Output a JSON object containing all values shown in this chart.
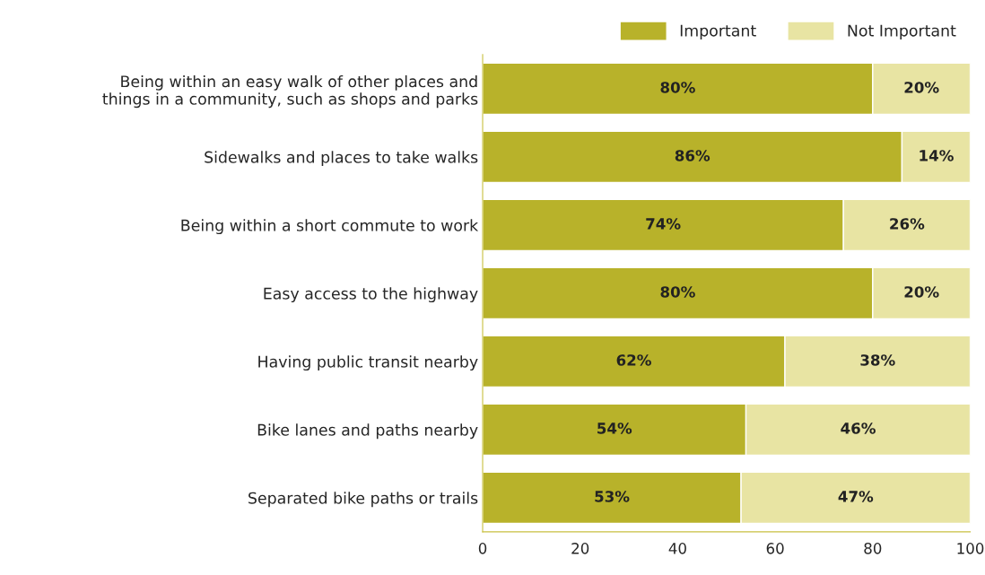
{
  "chart_data": {
    "type": "bar",
    "orientation": "horizontal",
    "stacked": true,
    "categories": [
      "Being within an easy walk of other places and\nthings in a community, such as shops and parks",
      "Sidewalks and places to take walks",
      "Being within a short commute to work",
      "Easy access to the highway",
      "Having public transit nearby",
      "Bike lanes and paths nearby",
      "Separated bike paths or trails"
    ],
    "series": [
      {
        "name": "Important",
        "color": "#b8b22a",
        "values": [
          80,
          86,
          74,
          80,
          62,
          54,
          53
        ],
        "value_labels": [
          "80%",
          "86%",
          "74%",
          "80%",
          "62%",
          "54%",
          "53%"
        ]
      },
      {
        "name": "Not Important",
        "color": "#e8e4a3",
        "values": [
          20,
          14,
          26,
          20,
          38,
          46,
          47
        ],
        "value_labels": [
          "20%",
          "14%",
          "26%",
          "20%",
          "38%",
          "46%",
          "47%"
        ]
      }
    ],
    "xlim": [
      0,
      100
    ],
    "xticks": [
      0,
      20,
      40,
      60,
      80,
      100
    ],
    "grid": false,
    "legend": "top right"
  }
}
